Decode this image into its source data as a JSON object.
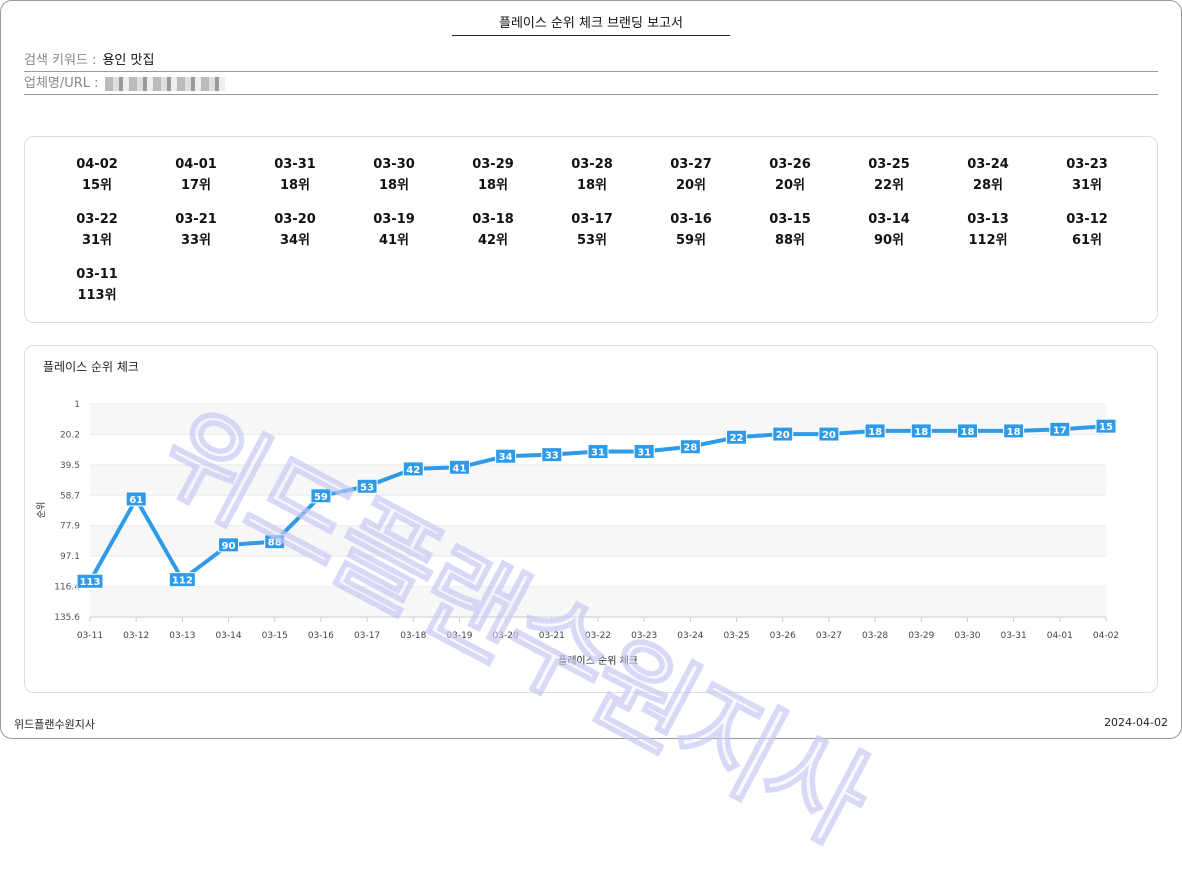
{
  "report": {
    "title": "플레이스 순위 체크 브랜딩 보고서",
    "keyword_label": "검색 키워드 :",
    "keyword": "용인 맛집",
    "business_label": "업체명/URL :"
  },
  "ranks": [
    {
      "date": "04-02",
      "rank": "15위"
    },
    {
      "date": "04-01",
      "rank": "17위"
    },
    {
      "date": "03-31",
      "rank": "18위"
    },
    {
      "date": "03-30",
      "rank": "18위"
    },
    {
      "date": "03-29",
      "rank": "18위"
    },
    {
      "date": "03-28",
      "rank": "18위"
    },
    {
      "date": "03-27",
      "rank": "20위"
    },
    {
      "date": "03-26",
      "rank": "20위"
    },
    {
      "date": "03-25",
      "rank": "22위"
    },
    {
      "date": "03-24",
      "rank": "28위"
    },
    {
      "date": "03-23",
      "rank": "31위"
    },
    {
      "date": "03-22",
      "rank": "31위"
    },
    {
      "date": "03-21",
      "rank": "33위"
    },
    {
      "date": "03-20",
      "rank": "34위"
    },
    {
      "date": "03-19",
      "rank": "41위"
    },
    {
      "date": "03-18",
      "rank": "42위"
    },
    {
      "date": "03-17",
      "rank": "53위"
    },
    {
      "date": "03-16",
      "rank": "59위"
    },
    {
      "date": "03-15",
      "rank": "88위"
    },
    {
      "date": "03-14",
      "rank": "90위"
    },
    {
      "date": "03-13",
      "rank": "112위"
    },
    {
      "date": "03-12",
      "rank": "61위"
    },
    {
      "date": "03-11",
      "rank": "113위"
    }
  ],
  "chart_data": {
    "type": "line",
    "title": "플레이스 순위 체크",
    "xlabel": "플레이스 순위 체크",
    "ylabel": "순위",
    "categories": [
      "03-11",
      "03-12",
      "03-13",
      "03-14",
      "03-15",
      "03-16",
      "03-17",
      "03-18",
      "03-19",
      "03-20",
      "03-21",
      "03-22",
      "03-23",
      "03-24",
      "03-25",
      "03-26",
      "03-27",
      "03-28",
      "03-29",
      "03-30",
      "03-31",
      "04-01",
      "04-02"
    ],
    "values": [
      113,
      61,
      112,
      90,
      88,
      59,
      53,
      42,
      41,
      34,
      33,
      31,
      31,
      28,
      22,
      20,
      20,
      18,
      18,
      18,
      18,
      17,
      15
    ],
    "yticks": [
      "1",
      "20.2",
      "39.5",
      "58.7",
      "77.9",
      "97.1",
      "116.4",
      "135.6"
    ],
    "ylim": [
      1,
      135.6
    ],
    "y_reversed": true,
    "grid": true,
    "color": "#2f9ae8"
  },
  "watermark": "위드플랜수원지사",
  "footer": {
    "left": "위드플랜수원지사",
    "right": "2024-04-02"
  }
}
